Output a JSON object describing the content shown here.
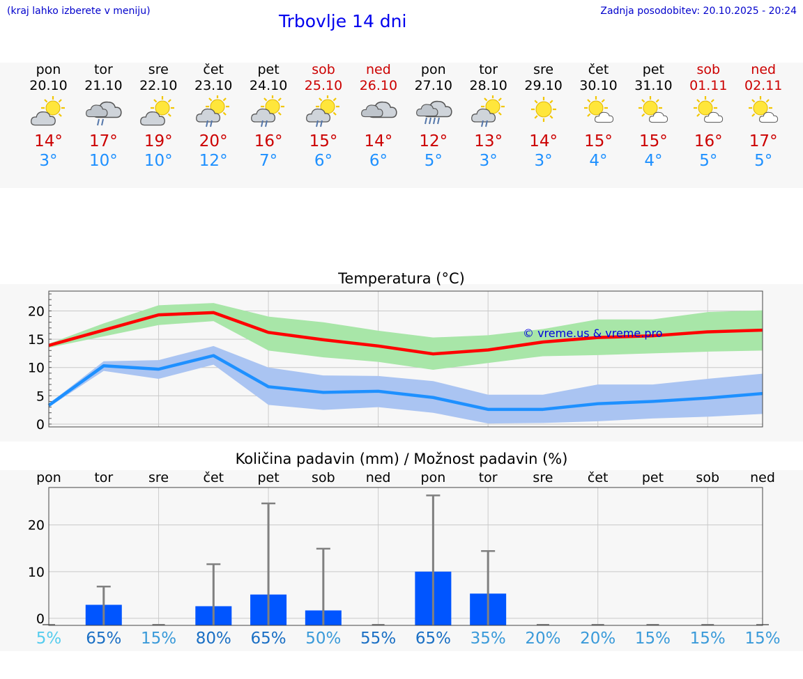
{
  "header": {
    "hint": "(kraj lahko izberete v meniju)",
    "title": "Trbovlje 14 dni",
    "updated": "Zadnja posodobitev: 20.10.2025 - 20:24"
  },
  "colors": {
    "max": "#ff0000",
    "min": "#1e90ff",
    "max_band": "#a8e6a8",
    "min_band": "#aac4f2",
    "bar": "#0055ff",
    "weekend": "#cc0000"
  },
  "days": [
    {
      "name": "pon",
      "date": "20.10",
      "weekend": false,
      "icon": "sun-cloud-icon",
      "max": "14°",
      "min": "3°"
    },
    {
      "name": "tor",
      "date": "21.10",
      "weekend": false,
      "icon": "rain-cloud-icon",
      "max": "17°",
      "min": "10°"
    },
    {
      "name": "sre",
      "date": "22.10",
      "weekend": false,
      "icon": "sun-cloud-icon",
      "max": "19°",
      "min": "10°"
    },
    {
      "name": "čet",
      "date": "23.10",
      "weekend": false,
      "icon": "sun-rain-icon",
      "max": "20°",
      "min": "12°"
    },
    {
      "name": "pet",
      "date": "24.10",
      "weekend": false,
      "icon": "sun-rain-icon",
      "max": "16°",
      "min": "7°"
    },
    {
      "name": "sob",
      "date": "25.10",
      "weekend": true,
      "icon": "sun-rain-icon",
      "max": "15°",
      "min": "6°"
    },
    {
      "name": "ned",
      "date": "26.10",
      "weekend": true,
      "icon": "cloud-icon",
      "max": "14°",
      "min": "6°"
    },
    {
      "name": "pon",
      "date": "27.10",
      "weekend": false,
      "icon": "heavy-rain-icon",
      "max": "12°",
      "min": "5°"
    },
    {
      "name": "tor",
      "date": "28.10",
      "weekend": false,
      "icon": "sun-rain-icon",
      "max": "13°",
      "min": "3°"
    },
    {
      "name": "sre",
      "date": "29.10",
      "weekend": false,
      "icon": "sun-icon",
      "max": "14°",
      "min": "3°"
    },
    {
      "name": "čet",
      "date": "30.10",
      "weekend": false,
      "icon": "sun-small-cloud-icon",
      "max": "15°",
      "min": "4°"
    },
    {
      "name": "pet",
      "date": "31.10",
      "weekend": false,
      "icon": "sun-small-cloud-icon",
      "max": "15°",
      "min": "4°"
    },
    {
      "name": "sob",
      "date": "01.11",
      "weekend": true,
      "icon": "sun-small-cloud-icon",
      "max": "16°",
      "min": "5°"
    },
    {
      "name": "ned",
      "date": "02.11",
      "weekend": true,
      "icon": "sun-small-cloud-icon",
      "max": "17°",
      "min": "5°"
    }
  ],
  "chart_data": [
    {
      "type": "line",
      "title": "Temperatura (°C)",
      "watermark": "© vreme.us & vreme.pro",
      "ylim": [
        -0.5,
        23.5
      ],
      "yticks": [
        0,
        5,
        10,
        15,
        20
      ],
      "series": [
        {
          "name": "max",
          "values": [
            13.9,
            16.6,
            19.3,
            19.7,
            16.2,
            14.9,
            13.8,
            12.4,
            13.1,
            14.5,
            15.3,
            15.6,
            16.3,
            16.6
          ],
          "band_low": [
            13.5,
            15.5,
            17.5,
            18.2,
            13.0,
            11.8,
            11.0,
            9.6,
            10.8,
            12.0,
            12.2,
            12.5,
            12.8,
            13.0
          ],
          "band_high": [
            14.2,
            17.8,
            21.0,
            21.4,
            19.0,
            18.0,
            16.5,
            15.3,
            15.7,
            16.8,
            18.5,
            18.5,
            19.8,
            20.1
          ]
        },
        {
          "name": "min",
          "values": [
            3.3,
            10.3,
            9.7,
            12.1,
            6.6,
            5.6,
            5.8,
            4.7,
            2.6,
            2.6,
            3.6,
            4.0,
            4.6,
            5.4
          ],
          "band_low": [
            3.0,
            9.4,
            8.0,
            10.5,
            3.4,
            2.5,
            3.0,
            2.0,
            0.1,
            0.2,
            0.5,
            1.0,
            1.3,
            1.8
          ],
          "band_high": [
            3.6,
            11.1,
            11.3,
            13.8,
            10.0,
            8.6,
            8.5,
            7.6,
            5.2,
            5.2,
            7.0,
            7.0,
            8.0,
            8.9
          ]
        }
      ]
    },
    {
      "type": "bar",
      "title": "Količina padavin (mm) / Možnost padavin (%)",
      "categories": [
        "pon",
        "tor",
        "sre",
        "čet",
        "pet",
        "sob",
        "ned",
        "pon",
        "tor",
        "sre",
        "čet",
        "pet",
        "sob",
        "ned"
      ],
      "ylim": [
        -1.5,
        28
      ],
      "yticks": [
        0,
        10,
        20
      ],
      "values": [
        0,
        2.9,
        0,
        2.6,
        5.1,
        1.7,
        0,
        10,
        5.3,
        0,
        0,
        0,
        0,
        0
      ],
      "error_high": [
        0,
        6.8,
        0,
        11.6,
        24.6,
        14.9,
        0,
        26.3,
        14.4,
        0,
        0,
        0,
        0,
        0
      ],
      "probability": [
        "5%",
        "65%",
        "15%",
        "80%",
        "65%",
        "50%",
        "55%",
        "65%",
        "35%",
        "20%",
        "20%",
        "15%",
        "15%",
        "15%"
      ],
      "probability_colors": [
        "#55ccee",
        "#1a6fc4",
        "#3a9ad9",
        "#1a6fc4",
        "#1a6fc4",
        "#3a9ad9",
        "#1a6fc4",
        "#1a6fc4",
        "#3a9ad9",
        "#3a9ad9",
        "#3a9ad9",
        "#3a9ad9",
        "#3a9ad9",
        "#3a9ad9"
      ]
    }
  ]
}
